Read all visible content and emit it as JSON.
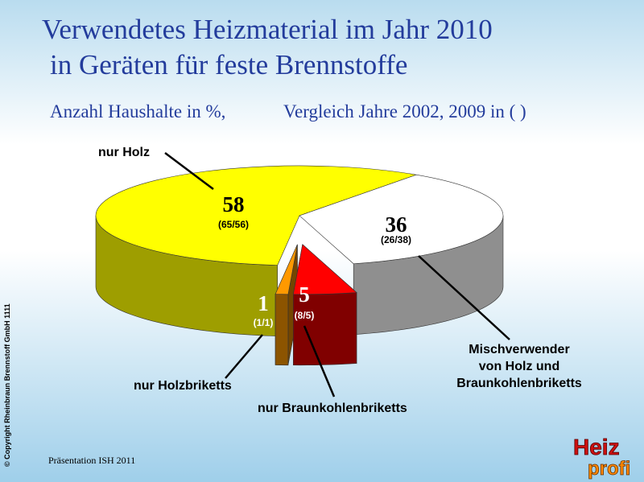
{
  "chart_data": {
    "type": "pie",
    "title": [
      "Verwendetes Heizmaterial im Jahr 2010",
      "in Geräten für feste Brennstoffe"
    ],
    "subtitle": [
      "Anzahl Haushalte in %,",
      "Vergleich Jahre 2002, 2009 in ( )"
    ],
    "categories": [
      "nur Holz",
      "Mischverwender\nvon Holz und\nBraunkohlenbriketts",
      "nur Braunkohlenbriketts",
      "nur Holzbriketts"
    ],
    "values": [
      58,
      36,
      5,
      1
    ],
    "comparison_labels": [
      "(65/56)",
      "(26/38)",
      "(8/5)",
      "(1/1)"
    ],
    "colors": [
      "#ffff00",
      "#ffffff",
      "#ff0000",
      "#ff9900"
    ]
  },
  "footer": {
    "presentation": "Präsentation ISH 2011",
    "copyright": "© Copyright  Rheinbraun Brennstoff GmbH   1111",
    "logo": [
      "Heiz",
      "profi"
    ]
  }
}
